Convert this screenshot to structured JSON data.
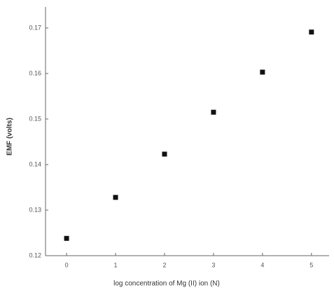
{
  "chart_data": {
    "type": "scatter",
    "x_label": "log concentration of Mg (II) ion (N)",
    "y_label": "EMF (volts)",
    "series": [
      {
        "name": "EMF",
        "color": "#111111",
        "x": [
          0,
          1,
          2,
          3,
          4,
          5
        ],
        "values": [
          0.1238,
          0.1328,
          0.1423,
          0.1515,
          0.1603,
          0.1691
        ]
      }
    ],
    "xlim": [
      -0.43,
      5.36
    ],
    "xticks": [
      0,
      1,
      2,
      3,
      4,
      5
    ],
    "ylim": [
      0.12,
      0.1746
    ],
    "yticks": [
      0.12,
      0.13,
      0.14,
      0.15,
      0.16,
      0.17
    ]
  }
}
